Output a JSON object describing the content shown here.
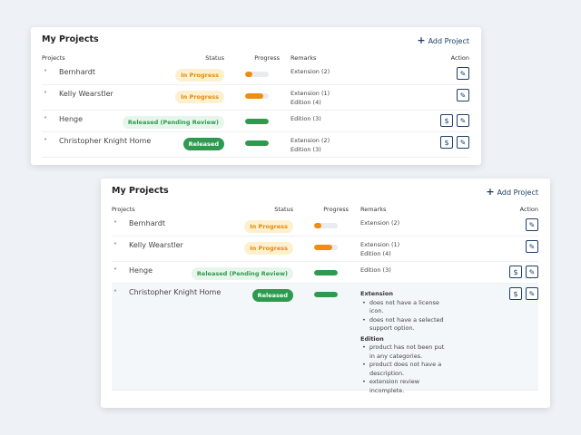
{
  "colors": {
    "in_progress": "#f08c10",
    "released": "#2e9a50",
    "accent": "#1d3f66"
  },
  "panels": [
    {
      "title": "My Projects",
      "add_label": "Add Project",
      "columns": {
        "projects": "Projects",
        "status": "Status",
        "progress": "Progress",
        "remarks": "Remarks",
        "action": "Action"
      },
      "rows": [
        {
          "name": "Bernhardt",
          "status": "In Progress",
          "status_type": "ip",
          "progress": 0.1,
          "remarks": [
            "Extension (2)"
          ],
          "actions": [
            "edit-icon"
          ],
          "expanded": false
        },
        {
          "name": "Kelly Wearstler",
          "status": "In Progress",
          "status_type": "ip",
          "progress": 0.75,
          "remarks": [
            "Extension (1)",
            "Edition (4)"
          ],
          "actions": [
            "edit-icon"
          ],
          "expanded": false
        },
        {
          "name": "Henge",
          "status": "Released (Pending Review)",
          "status_type": "pr",
          "progress": 1,
          "remarks": [
            "Edition (3)"
          ],
          "actions": [
            "dollar-icon",
            "edit-icon"
          ],
          "expanded": false
        },
        {
          "name": "Christopher Knight Home",
          "status": "Released",
          "status_type": "r",
          "progress": 1,
          "remarks": [
            "Extension (2)",
            "Edition (3)"
          ],
          "actions": [
            "dollar-icon",
            "edit-icon"
          ],
          "expanded": false
        }
      ]
    },
    {
      "title": "My Projects",
      "add_label": "Add Project",
      "columns": {
        "projects": "Projects",
        "status": "Status",
        "progress": "Progress",
        "remarks": "Remarks",
        "action": "Action"
      },
      "rows": [
        {
          "name": "Bernhardt",
          "status": "In Progress",
          "status_type": "ip",
          "progress": 0.1,
          "remarks": [
            "Extension (2)"
          ],
          "actions": [
            "edit-icon"
          ],
          "expanded": false
        },
        {
          "name": "Kelly Wearstler",
          "status": "In Progress",
          "status_type": "ip",
          "progress": 0.75,
          "remarks": [
            "Extension (1)",
            "Edition (4)"
          ],
          "actions": [
            "edit-icon"
          ],
          "expanded": false
        },
        {
          "name": "Henge",
          "status": "Released (Pending Review)",
          "status_type": "pr",
          "progress": 1,
          "remarks": [
            "Edition (3)"
          ],
          "actions": [
            "dollar-icon",
            "edit-icon"
          ],
          "expanded": false
        },
        {
          "name": "Christopher Knight Home",
          "status": "Released",
          "status_type": "r",
          "progress": 1,
          "actions": [
            "dollar-icon",
            "edit-icon"
          ],
          "expanded": true,
          "details": [
            {
              "heading": "Extension",
              "items": [
                "does not have a license icon.",
                "does not have a selected support option."
              ]
            },
            {
              "heading": "Edition",
              "items": [
                "product has not been put in any categories.",
                "product does not have a description.",
                "extension review incomplete."
              ]
            }
          ]
        }
      ]
    }
  ]
}
